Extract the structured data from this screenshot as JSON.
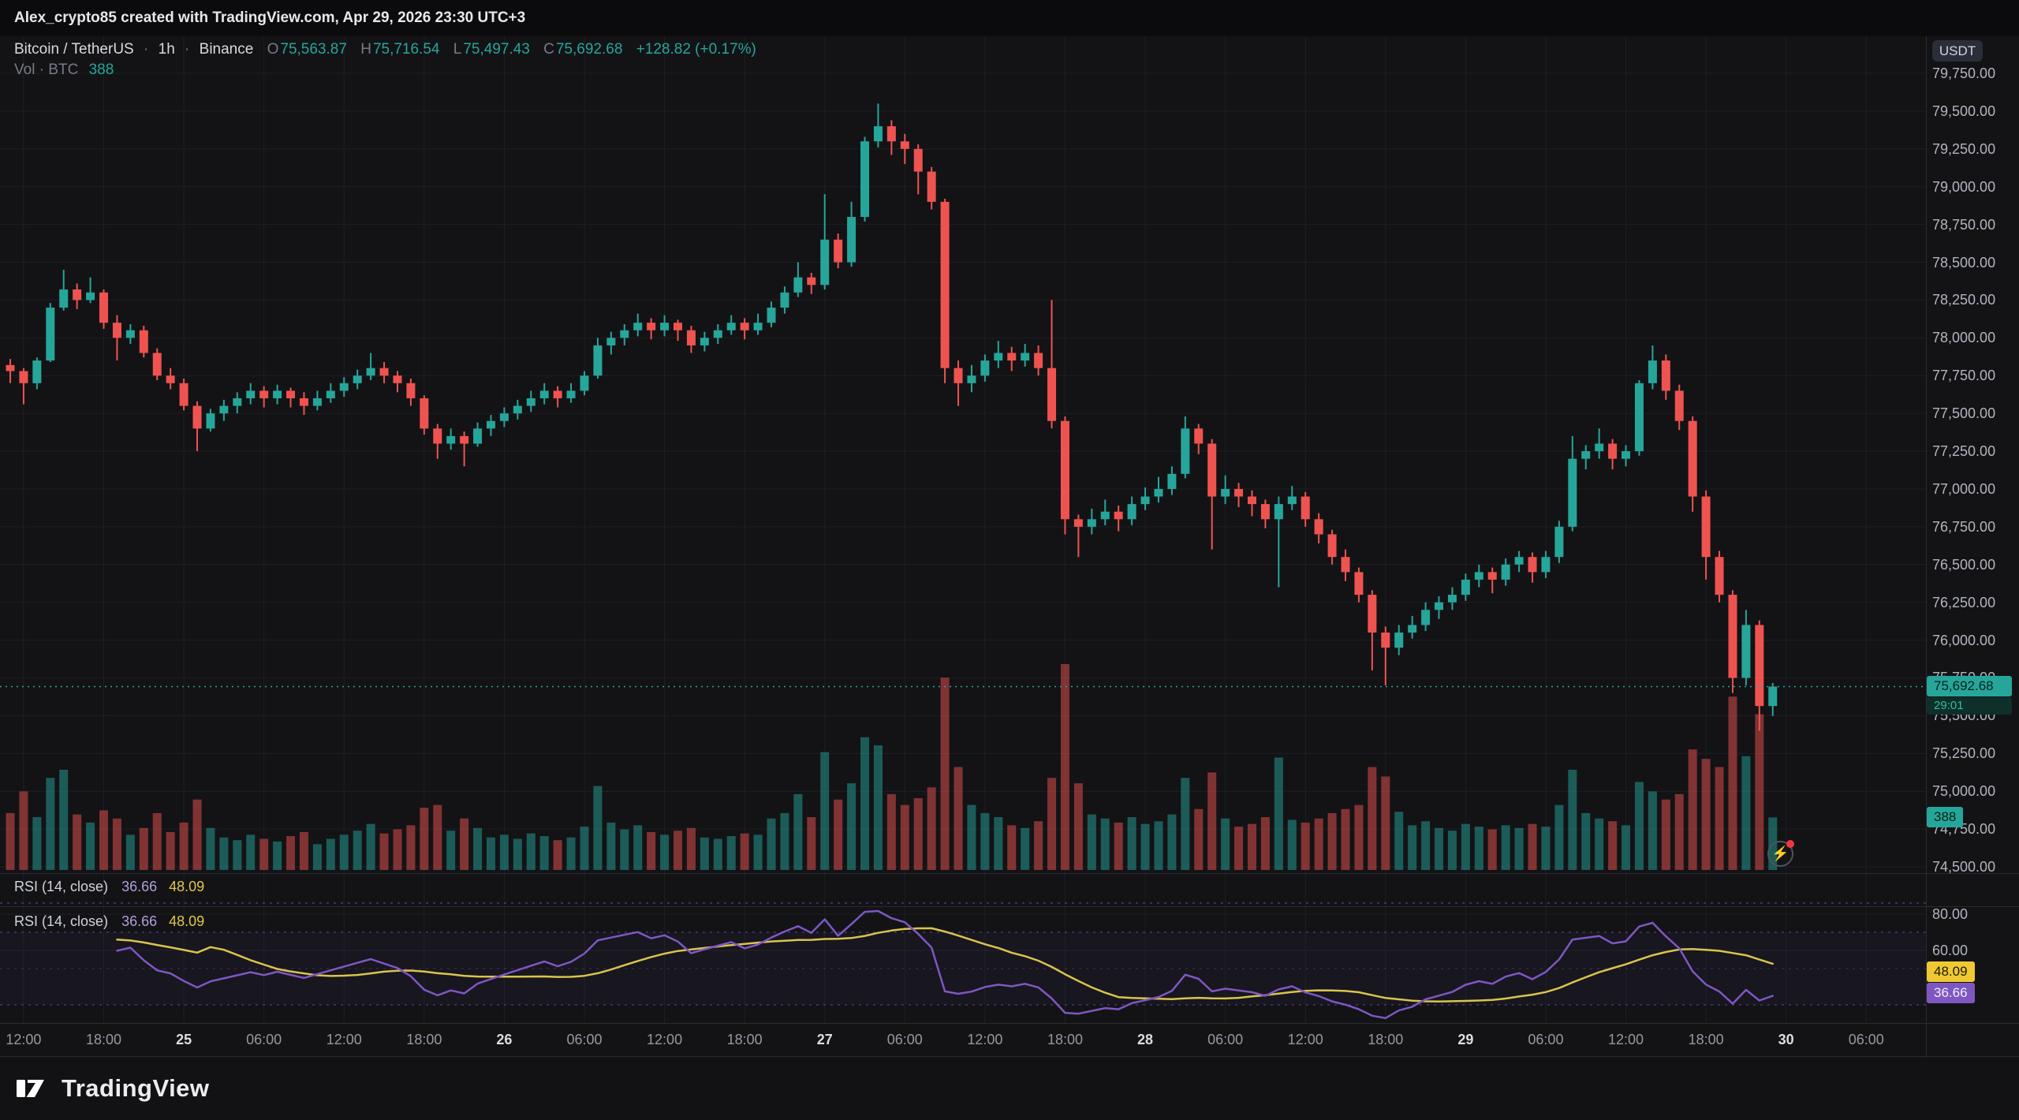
{
  "topbar": {
    "attribution": "Alex_crypto85 created with TradingView.com, Apr 29, 2026 23:30 UTC+3"
  },
  "header": {
    "symbol": "Bitcoin / TetherUS",
    "separator": "·",
    "interval": "1h",
    "exchange": "Binance",
    "o_label": "O",
    "o": "75,563.87",
    "h_label": "H",
    "h": "75,716.54",
    "l_label": "L",
    "l": "75,497.43",
    "c_label": "C",
    "c": "75,692.68",
    "change": "+128.82 (+0.17%)",
    "vol_label": "Vol · BTC",
    "vol_value": "388"
  },
  "price_axis": {
    "currency_button": "USDT",
    "labels": [
      {
        "text": "79,750.00",
        "value": 79750
      },
      {
        "text": "79,500.00",
        "value": 79500
      },
      {
        "text": "79,250.00",
        "value": 79250
      },
      {
        "text": "79,000.00",
        "value": 79000
      },
      {
        "text": "78,750.00",
        "value": 78750
      },
      {
        "text": "78,500.00",
        "value": 78500
      },
      {
        "text": "78,250.00",
        "value": 78250
      },
      {
        "text": "78,000.00",
        "value": 78000
      },
      {
        "text": "77,750.00",
        "value": 77750
      },
      {
        "text": "77,500.00",
        "value": 77500
      },
      {
        "text": "77,250.00",
        "value": 77250
      },
      {
        "text": "77,000.00",
        "value": 77000
      },
      {
        "text": "76,750.00",
        "value": 76750
      },
      {
        "text": "76,500.00",
        "value": 76500
      },
      {
        "text": "76,250.00",
        "value": 76250
      },
      {
        "text": "76,000.00",
        "value": 76000
      },
      {
        "text": "75,750.00",
        "value": 75750
      },
      {
        "text": "75,500.00",
        "value": 75500
      },
      {
        "text": "75,250.00",
        "value": 75250
      },
      {
        "text": "75,000.00",
        "value": 75000
      },
      {
        "text": "74,750.00",
        "value": 74750
      },
      {
        "text": "74,500.00",
        "value": 74500
      }
    ]
  },
  "badges": {
    "last_price": "75,692.68",
    "countdown": "29:01",
    "volume": "388",
    "rsi_ma": "48.09",
    "rsi": "36.66"
  },
  "panes": {
    "rsi_top": {
      "title": "RSI (14, close)",
      "rsi_value": "36.66",
      "ma_value": "48.09"
    },
    "rsi_main": {
      "title": "RSI (14, close)",
      "rsi_value": "36.66",
      "ma_value": "48.09",
      "axis_labels": [
        {
          "text": "80.00",
          "value": 80
        },
        {
          "text": "60.00",
          "value": 60
        }
      ]
    }
  },
  "time_axis": {
    "labels": [
      {
        "text": "12:00",
        "idx": 1,
        "bold": false
      },
      {
        "text": "18:00",
        "idx": 7,
        "bold": false
      },
      {
        "text": "25",
        "idx": 13,
        "bold": true
      },
      {
        "text": "06:00",
        "idx": 19,
        "bold": false
      },
      {
        "text": "12:00",
        "idx": 25,
        "bold": false
      },
      {
        "text": "18:00",
        "idx": 31,
        "bold": false
      },
      {
        "text": "26",
        "idx": 37,
        "bold": true
      },
      {
        "text": "06:00",
        "idx": 43,
        "bold": false
      },
      {
        "text": "12:00",
        "idx": 49,
        "bold": false
      },
      {
        "text": "18:00",
        "idx": 55,
        "bold": false
      },
      {
        "text": "27",
        "idx": 61,
        "bold": true
      },
      {
        "text": "06:00",
        "idx": 67,
        "bold": false
      },
      {
        "text": "12:00",
        "idx": 73,
        "bold": false
      },
      {
        "text": "18:00",
        "idx": 79,
        "bold": false
      },
      {
        "text": "28",
        "idx": 85,
        "bold": true
      },
      {
        "text": "06:00",
        "idx": 91,
        "bold": false
      },
      {
        "text": "12:00",
        "idx": 97,
        "bold": false
      },
      {
        "text": "18:00",
        "idx": 103,
        "bold": false
      },
      {
        "text": "29",
        "idx": 109,
        "bold": true
      },
      {
        "text": "06:00",
        "idx": 115,
        "bold": false
      },
      {
        "text": "12:00",
        "idx": 121,
        "bold": false
      },
      {
        "text": "18:00",
        "idx": 127,
        "bold": false
      },
      {
        "text": "30",
        "idx": 133,
        "bold": true
      },
      {
        "text": "06:00",
        "idx": 139,
        "bold": false
      }
    ]
  },
  "icons": {
    "lightning": "⚡"
  },
  "footer": {
    "brand": "TradingView"
  },
  "colors": {
    "background": "#131316",
    "topbar_bg": "#0b0b0d",
    "footer_bg": "#121214",
    "grid": "#1e1f23",
    "axis_border": "#2a2b30",
    "axis_text": "#b2b5be",
    "up": "#26a69a",
    "down": "#ef5350",
    "last_price_line": "#26a69a",
    "rsi_line": "#7e57c2",
    "rsi_ma_line": "#d9c44d",
    "rsi_band": "#7e57c2",
    "badge_yellow": "#f0c832",
    "badge_purple": "#7e57c2",
    "countdown_bg": "#0e2f2a",
    "countdown_text": "#2fbfa4",
    "text_primary": "#d1d4dc",
    "text_muted": "#787b86"
  },
  "chart_data": {
    "type": "candlestick",
    "symbol": "Bitcoin / TetherUS",
    "exchange": "Binance",
    "interval": "1h",
    "price_range": [
      74500,
      79750
    ],
    "price_step": 250,
    "last_price": 75692.68,
    "volume_last": 388,
    "rsi": {
      "period": 14,
      "last": 36.66,
      "ma_last": 48.09,
      "bands": [
        70,
        50,
        30
      ],
      "range": [
        20,
        80
      ]
    },
    "candles": [
      [
        77820,
        77860,
        77700,
        77780,
        420
      ],
      [
        77780,
        77800,
        77560,
        77700,
        580
      ],
      [
        77700,
        77870,
        77660,
        77850,
        390
      ],
      [
        77850,
        78230,
        77840,
        78200,
        680
      ],
      [
        78200,
        78450,
        78180,
        78320,
        740
      ],
      [
        78320,
        78360,
        78190,
        78250,
        410
      ],
      [
        78250,
        78400,
        78230,
        78300,
        350
      ],
      [
        78300,
        78320,
        78060,
        78100,
        440
      ],
      [
        78100,
        78150,
        77850,
        78000,
        380
      ],
      [
        78000,
        78090,
        77960,
        78050,
        260
      ],
      [
        78050,
        78080,
        77870,
        77900,
        310
      ],
      [
        77900,
        77930,
        77720,
        77750,
        420
      ],
      [
        77750,
        77800,
        77660,
        77700,
        280
      ],
      [
        77700,
        77730,
        77520,
        77550,
        350
      ],
      [
        77550,
        77580,
        77250,
        77400,
        520
      ],
      [
        77400,
        77530,
        77380,
        77500,
        310
      ],
      [
        77500,
        77590,
        77450,
        77550,
        240
      ],
      [
        77550,
        77640,
        77500,
        77600,
        220
      ],
      [
        77600,
        77700,
        77560,
        77650,
        260
      ],
      [
        77650,
        77680,
        77540,
        77600,
        230
      ],
      [
        77600,
        77690,
        77560,
        77650,
        210
      ],
      [
        77650,
        77670,
        77540,
        77600,
        250
      ],
      [
        77600,
        77640,
        77490,
        77550,
        280
      ],
      [
        77550,
        77650,
        77520,
        77600,
        190
      ],
      [
        77600,
        77700,
        77570,
        77650,
        230
      ],
      [
        77650,
        77740,
        77610,
        77700,
        260
      ],
      [
        77700,
        77790,
        77660,
        77750,
        290
      ],
      [
        77750,
        77900,
        77720,
        77800,
        340
      ],
      [
        77800,
        77840,
        77700,
        77750,
        270
      ],
      [
        77750,
        77780,
        77640,
        77700,
        300
      ],
      [
        77700,
        77730,
        77550,
        77600,
        330
      ],
      [
        77600,
        77620,
        77360,
        77400,
        460
      ],
      [
        77400,
        77430,
        77200,
        77300,
        480
      ],
      [
        77300,
        77400,
        77260,
        77350,
        290
      ],
      [
        77350,
        77380,
        77150,
        77300,
        380
      ],
      [
        77300,
        77440,
        77280,
        77400,
        310
      ],
      [
        77400,
        77490,
        77350,
        77450,
        240
      ],
      [
        77450,
        77540,
        77410,
        77500,
        260
      ],
      [
        77500,
        77590,
        77460,
        77550,
        230
      ],
      [
        77550,
        77650,
        77510,
        77600,
        270
      ],
      [
        77600,
        77700,
        77560,
        77650,
        250
      ],
      [
        77650,
        77680,
        77540,
        77600,
        220
      ],
      [
        77600,
        77700,
        77570,
        77650,
        240
      ],
      [
        77650,
        77780,
        77620,
        77750,
        320
      ],
      [
        77750,
        78000,
        77730,
        77950,
        620
      ],
      [
        77950,
        78040,
        77890,
        78000,
        350
      ],
      [
        78000,
        78090,
        77950,
        78050,
        300
      ],
      [
        78050,
        78160,
        78010,
        78100,
        330
      ],
      [
        78100,
        78130,
        77990,
        78050,
        280
      ],
      [
        78050,
        78150,
        78010,
        78100,
        260
      ],
      [
        78100,
        78120,
        77980,
        78050,
        290
      ],
      [
        78050,
        78080,
        77900,
        77950,
        310
      ],
      [
        77950,
        78040,
        77910,
        78000,
        240
      ],
      [
        78000,
        78090,
        77960,
        78050,
        230
      ],
      [
        78050,
        78150,
        78020,
        78100,
        250
      ],
      [
        78100,
        78130,
        77990,
        78050,
        270
      ],
      [
        78050,
        78160,
        78020,
        78100,
        260
      ],
      [
        78100,
        78240,
        78070,
        78200,
        380
      ],
      [
        78200,
        78340,
        78160,
        78300,
        420
      ],
      [
        78300,
        78500,
        78270,
        78400,
        560
      ],
      [
        78400,
        78430,
        78290,
        78350,
        390
      ],
      [
        78350,
        78950,
        78320,
        78650,
        870
      ],
      [
        78650,
        78690,
        78460,
        78500,
        520
      ],
      [
        78500,
        78900,
        78470,
        78800,
        640
      ],
      [
        78800,
        79330,
        78770,
        79300,
        980
      ],
      [
        79300,
        79550,
        79260,
        79400,
        920
      ],
      [
        79400,
        79440,
        79210,
        79300,
        560
      ],
      [
        79300,
        79350,
        79150,
        79250,
        480
      ],
      [
        79250,
        79280,
        78950,
        79100,
        530
      ],
      [
        79100,
        79130,
        78850,
        78900,
        610
      ],
      [
        78900,
        78920,
        77700,
        77800,
        1420
      ],
      [
        77800,
        77850,
        77550,
        77700,
        760
      ],
      [
        77700,
        77820,
        77640,
        77750,
        480
      ],
      [
        77750,
        77890,
        77710,
        77850,
        420
      ],
      [
        77850,
        77980,
        77800,
        77900,
        390
      ],
      [
        77900,
        77940,
        77780,
        77850,
        330
      ],
      [
        77850,
        77960,
        77810,
        77900,
        310
      ],
      [
        77900,
        77950,
        77750,
        77800,
        360
      ],
      [
        77800,
        78250,
        77400,
        77450,
        680
      ],
      [
        77450,
        77480,
        76700,
        76800,
        1520
      ],
      [
        76800,
        76830,
        76550,
        76750,
        640
      ],
      [
        76750,
        76870,
        76700,
        76800,
        410
      ],
      [
        76800,
        76930,
        76760,
        76850,
        380
      ],
      [
        76850,
        76890,
        76720,
        76800,
        350
      ],
      [
        76800,
        76950,
        76760,
        76900,
        390
      ],
      [
        76900,
        77010,
        76860,
        76950,
        340
      ],
      [
        76950,
        77080,
        76910,
        77000,
        360
      ],
      [
        77000,
        77150,
        76960,
        77100,
        410
      ],
      [
        77100,
        77480,
        77070,
        77400,
        680
      ],
      [
        77400,
        77430,
        77230,
        77300,
        450
      ],
      [
        77300,
        77330,
        76600,
        76950,
        720
      ],
      [
        76950,
        77090,
        76900,
        77000,
        380
      ],
      [
        77000,
        77040,
        76880,
        76950,
        320
      ],
      [
        76950,
        76990,
        76820,
        76900,
        340
      ],
      [
        76900,
        76930,
        76740,
        76800,
        390
      ],
      [
        76800,
        76950,
        76350,
        76900,
        830
      ],
      [
        76900,
        77020,
        76860,
        76950,
        370
      ],
      [
        76950,
        76980,
        76750,
        76800,
        350
      ],
      [
        76800,
        76840,
        76640,
        76700,
        380
      ],
      [
        76700,
        76730,
        76500,
        76550,
        420
      ],
      [
        76550,
        76600,
        76390,
        76450,
        450
      ],
      [
        76450,
        76480,
        76250,
        76300,
        480
      ],
      [
        76300,
        76330,
        75800,
        76050,
        760
      ],
      [
        76050,
        76090,
        75700,
        75950,
        690
      ],
      [
        75950,
        76100,
        75900,
        76050,
        430
      ],
      [
        76050,
        76160,
        76010,
        76100,
        330
      ],
      [
        76100,
        76250,
        76060,
        76200,
        360
      ],
      [
        76200,
        76290,
        76140,
        76250,
        310
      ],
      [
        76250,
        76350,
        76200,
        76300,
        290
      ],
      [
        76300,
        76440,
        76260,
        76400,
        340
      ],
      [
        76400,
        76500,
        76350,
        76450,
        320
      ],
      [
        76450,
        76480,
        76310,
        76400,
        300
      ],
      [
        76400,
        76540,
        76360,
        76500,
        330
      ],
      [
        76500,
        76590,
        76450,
        76550,
        310
      ],
      [
        76550,
        76580,
        76380,
        76450,
        340
      ],
      [
        76450,
        76590,
        76410,
        76550,
        320
      ],
      [
        76550,
        76790,
        76510,
        76750,
        480
      ],
      [
        76750,
        77350,
        76720,
        77200,
        740
      ],
      [
        77200,
        77290,
        77130,
        77250,
        420
      ],
      [
        77250,
        77400,
        77200,
        77300,
        380
      ],
      [
        77300,
        77330,
        77130,
        77200,
        360
      ],
      [
        77200,
        77290,
        77150,
        77250,
        330
      ],
      [
        77250,
        77720,
        77220,
        77700,
        650
      ],
      [
        77700,
        77950,
        77660,
        77850,
        580
      ],
      [
        77850,
        77890,
        77590,
        77650,
        520
      ],
      [
        77650,
        77690,
        77390,
        77450,
        560
      ],
      [
        77450,
        77480,
        76850,
        76950,
        890
      ],
      [
        76950,
        76990,
        76400,
        76550,
        820
      ],
      [
        76550,
        76590,
        76250,
        76300,
        760
      ],
      [
        76300,
        76330,
        75650,
        75750,
        1280
      ],
      [
        75750,
        76200,
        75700,
        76100,
        840
      ],
      [
        76100,
        76130,
        75400,
        75563.86,
        1150
      ],
      [
        75563.87,
        75716.54,
        75497.43,
        75692.68,
        388
      ]
    ]
  }
}
